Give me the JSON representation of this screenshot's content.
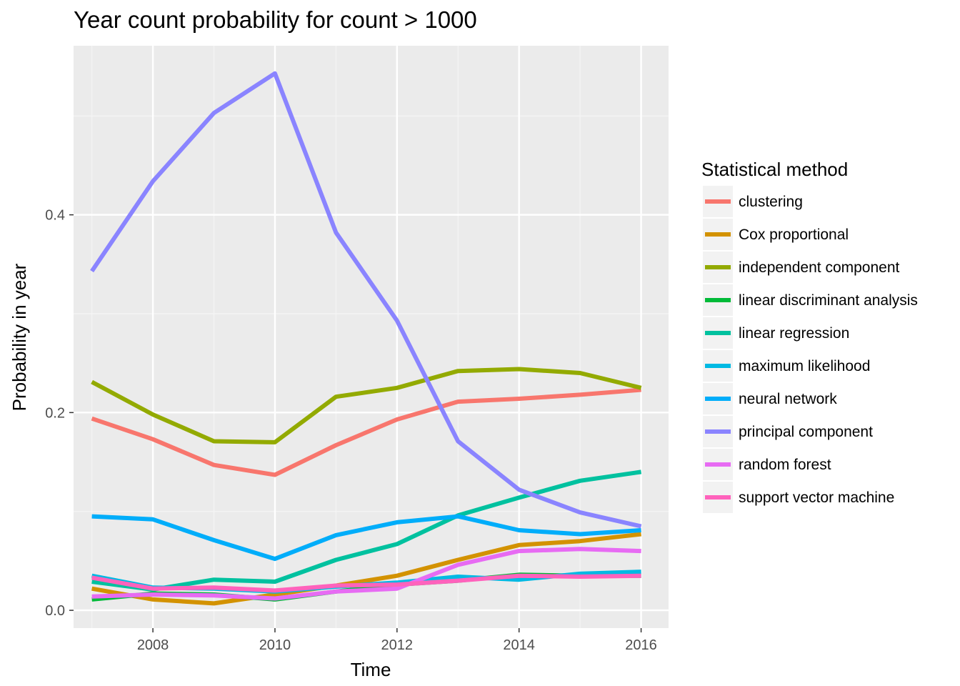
{
  "chart_data": {
    "type": "line",
    "title": "Year count probability for count > 1000",
    "xlabel": "Time",
    "ylabel": "Probability in year",
    "xlim": [
      2006.7,
      2016.45
    ],
    "ylim": [
      -0.018,
      0.571
    ],
    "x_ticks": [
      2008,
      2010,
      2012,
      2014,
      2016
    ],
    "x_tick_labels": [
      "2008",
      "2010",
      "2012",
      "2014",
      "2016"
    ],
    "y_ticks": [
      0.0,
      0.2,
      0.4
    ],
    "y_tick_labels": [
      "0.0",
      "0.2",
      "0.4"
    ],
    "grid": true,
    "legend_title": "Statistical method",
    "legend_position": "right",
    "x": [
      2007,
      2008,
      2009,
      2010,
      2011,
      2012,
      2013,
      2014,
      2015,
      2016
    ],
    "series": [
      {
        "name": "clustering",
        "color": "#F8766D",
        "values": [
          0.194,
          0.173,
          0.147,
          0.137,
          0.167,
          0.193,
          0.211,
          0.214,
          0.218,
          0.223
        ]
      },
      {
        "name": "Cox proportional",
        "color": "#D39200",
        "values": [
          0.022,
          0.011,
          0.007,
          0.016,
          0.025,
          0.035,
          0.051,
          0.066,
          0.07,
          0.077
        ]
      },
      {
        "name": "independent component",
        "color": "#93AA00",
        "values": [
          0.231,
          0.198,
          0.171,
          0.17,
          0.216,
          0.225,
          0.242,
          0.244,
          0.24,
          0.225
        ]
      },
      {
        "name": "linear discriminant analysis",
        "color": "#00BA38",
        "values": [
          0.011,
          0.017,
          0.016,
          0.011,
          0.019,
          0.026,
          0.03,
          0.036,
          0.035,
          0.035
        ]
      },
      {
        "name": "linear regression",
        "color": "#00C19F",
        "values": [
          0.029,
          0.021,
          0.031,
          0.029,
          0.051,
          0.067,
          0.096,
          0.114,
          0.131,
          0.14
        ]
      },
      {
        "name": "maximum likelihood",
        "color": "#00B9E3",
        "values": [
          0.035,
          0.023,
          0.022,
          0.019,
          0.024,
          0.028,
          0.034,
          0.031,
          0.037,
          0.039
        ]
      },
      {
        "name": "neural network",
        "color": "#00ADFA",
        "values": [
          0.095,
          0.092,
          0.071,
          0.052,
          0.076,
          0.089,
          0.095,
          0.081,
          0.077,
          0.081
        ]
      },
      {
        "name": "principal component",
        "color": "#8A84FF",
        "values": [
          0.343,
          0.434,
          0.503,
          0.543,
          0.382,
          0.293,
          0.171,
          0.122,
          0.099,
          0.085
        ]
      },
      {
        "name": "random forest",
        "color": "#E76BF3",
        "values": [
          0.014,
          0.016,
          0.015,
          0.012,
          0.019,
          0.022,
          0.046,
          0.06,
          0.062,
          0.06
        ]
      },
      {
        "name": "support vector machine",
        "color": "#FF62BC",
        "values": [
          0.033,
          0.022,
          0.023,
          0.02,
          0.025,
          0.026,
          0.03,
          0.035,
          0.034,
          0.035
        ]
      }
    ]
  }
}
